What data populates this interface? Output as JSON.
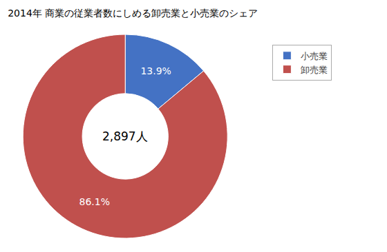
{
  "chart_data": {
    "type": "donut",
    "title": "2014年 商業の従業者数にしめる卸売業と小売業のシェア",
    "categories": [
      "小売業",
      "卸売業"
    ],
    "values": [
      13.9,
      86.1
    ],
    "value_labels": [
      "13.9%",
      "86.1%"
    ],
    "data_labels": true,
    "colors": [
      "#4472C4",
      "#C0504D"
    ],
    "annotations": [
      "2,897人"
    ],
    "legend": "upper right"
  }
}
